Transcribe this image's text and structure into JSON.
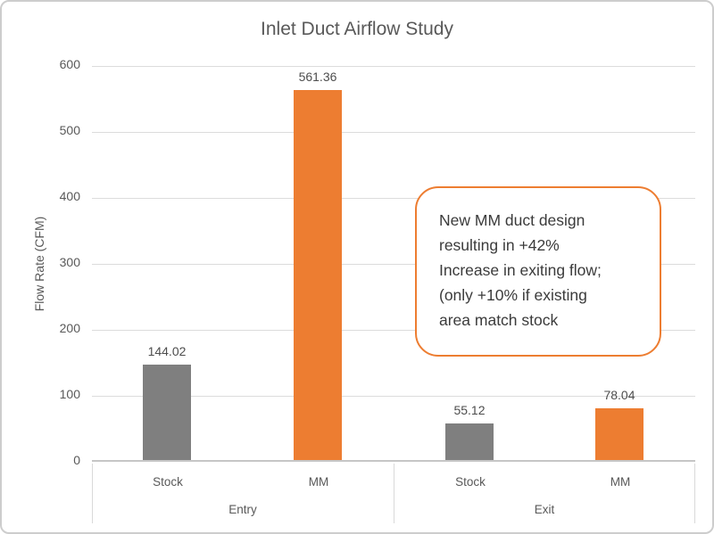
{
  "chart_data": {
    "type": "bar",
    "title": "Inlet Duct Airflow Study",
    "ylabel": "Flow Rate (CFM)",
    "xlabel": "",
    "ylim": [
      0,
      600
    ],
    "yticks": [
      0,
      100,
      200,
      300,
      400,
      500,
      600
    ],
    "grid": true,
    "legend": "none",
    "groups": [
      "Entry",
      "Exit"
    ],
    "categories": [
      "Stock",
      "MM",
      "Stock",
      "MM"
    ],
    "values": [
      144.02,
      561.36,
      55.12,
      78.04
    ],
    "bar_colors": [
      "#7f7f7f",
      "#ed7d31",
      "#7f7f7f",
      "#ed7d31"
    ]
  },
  "annotation": {
    "lines": [
      "New MM duct design",
      "resulting in +42%",
      "Increase in exiting flow;",
      "(only +10% if existing",
      "area match stock"
    ],
    "full_text": "New MM duct design resulting in +42% Increase in exiting flow; (only +10% if existing area match stock",
    "border_color": "#ed7d31"
  },
  "colors": {
    "accent_orange": "#ed7d31",
    "series_gray": "#7f7f7f",
    "axis_text": "#595959",
    "gridline": "#dcdcdc",
    "frame_border": "#cdcdcd"
  }
}
